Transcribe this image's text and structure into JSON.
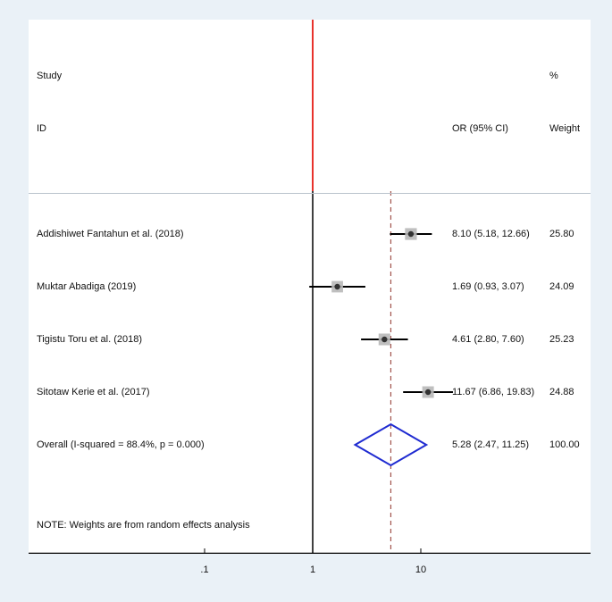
{
  "chart_data": {
    "type": "forest",
    "header": {
      "study_line1": "Study",
      "study_line2": "ID",
      "effect_label": "OR (95% CI)",
      "weight_line1": "%",
      "weight_line2": "Weight"
    },
    "studies": [
      {
        "label": "Addishiwet Fantahun et al. (2018)",
        "or": 8.1,
        "lower": 5.18,
        "upper": 12.66,
        "weight": 25.8,
        "ci_text": "8.10 (5.18, 12.66)",
        "weight_text": "25.80"
      },
      {
        "label": "Muktar Abadiga (2019)",
        "or": 1.69,
        "lower": 0.93,
        "upper": 3.07,
        "weight": 24.09,
        "ci_text": "1.69 (0.93, 3.07)",
        "weight_text": "24.09"
      },
      {
        "label": "Tigistu Toru et al. (2018)",
        "or": 4.61,
        "lower": 2.8,
        "upper": 7.6,
        "weight": 25.23,
        "ci_text": "4.61 (2.80, 7.60)",
        "weight_text": "25.23"
      },
      {
        "label": "Sitotaw Kerie et al. (2017)",
        "or": 11.67,
        "lower": 6.86,
        "upper": 19.83,
        "weight": 24.88,
        "ci_text": "11.67 (6.86, 19.83)",
        "weight_text": "24.88"
      }
    ],
    "overall": {
      "label": "Overall  (I-squared = 88.4%, p = 0.000)",
      "or": 5.28,
      "lower": 2.47,
      "upper": 11.25,
      "ci_text": "5.28 (2.47, 11.25)",
      "weight_text": "100.00"
    },
    "note": "NOTE: Weights are from random effects analysis",
    "x_scale": "log",
    "x_ticks": [
      0.1,
      1,
      10
    ],
    "x_tick_labels": [
      ".1",
      "1",
      "10"
    ],
    "null_value": 1,
    "colors": {
      "null_line": "#000000",
      "header_null_line": "#e8322c",
      "overall_line": "#a0524a",
      "diamond": "#1f2bd1",
      "marker": "#333333",
      "weight_box": "#b8b8b8"
    }
  }
}
